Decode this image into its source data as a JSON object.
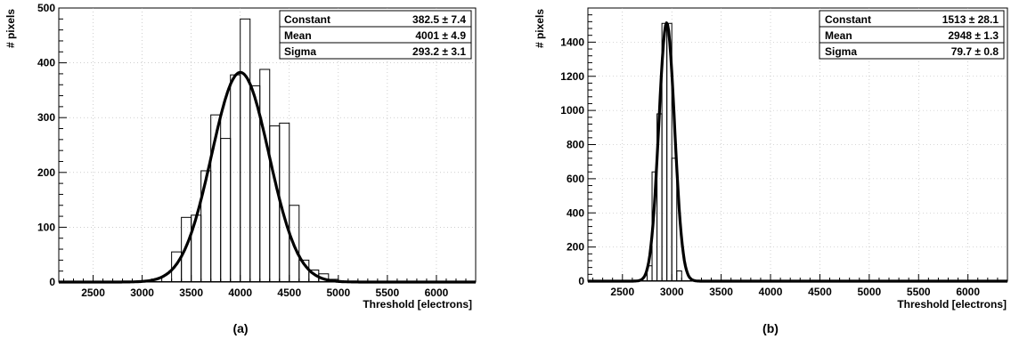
{
  "chart_data": [
    {
      "type": "bar",
      "panel_label": "(a)",
      "xlabel": "Threshold [electrons]",
      "ylabel": "# pixels",
      "xlim": [
        2150,
        6400
      ],
      "ylim": [
        0,
        500
      ],
      "xticks": [
        2500,
        3000,
        3500,
        4000,
        4500,
        5000,
        5500,
        6000
      ],
      "yticks": [
        0,
        100,
        200,
        300,
        400,
        500
      ],
      "bin_width": 100,
      "bins": [
        {
          "x": 3300,
          "y": 55
        },
        {
          "x": 3400,
          "y": 118
        },
        {
          "x": 3500,
          "y": 122
        },
        {
          "x": 3600,
          "y": 203
        },
        {
          "x": 3700,
          "y": 305
        },
        {
          "x": 3800,
          "y": 262
        },
        {
          "x": 3900,
          "y": 378
        },
        {
          "x": 4000,
          "y": 480
        },
        {
          "x": 4100,
          "y": 358
        },
        {
          "x": 4200,
          "y": 388
        },
        {
          "x": 4300,
          "y": 285
        },
        {
          "x": 4400,
          "y": 290
        },
        {
          "x": 4500,
          "y": 140
        },
        {
          "x": 4600,
          "y": 40
        },
        {
          "x": 4700,
          "y": 22
        },
        {
          "x": 4800,
          "y": 15
        },
        {
          "x": 4900,
          "y": 5
        }
      ],
      "fit": {
        "constant": 382.5,
        "mean": 4001,
        "sigma": 293.2
      },
      "stats": [
        {
          "label": "Constant",
          "value": "382.5 ± 7.4"
        },
        {
          "label": "Mean",
          "value": "4001 ± 4.9"
        },
        {
          "label": "Sigma",
          "value": "293.2 ± 3.1"
        }
      ]
    },
    {
      "type": "bar",
      "panel_label": "(b)",
      "xlabel": "Threshold [electrons]",
      "ylabel": "# pixels",
      "xlim": [
        2150,
        6400
      ],
      "ylim": [
        0,
        1600
      ],
      "xticks": [
        2500,
        3000,
        3500,
        4000,
        4500,
        5000,
        5500,
        6000
      ],
      "yticks": [
        0,
        200,
        400,
        600,
        800,
        1000,
        1200,
        1400
      ],
      "bin_width": 50,
      "bins": [
        {
          "x": 2750,
          "y": 90
        },
        {
          "x": 2800,
          "y": 640
        },
        {
          "x": 2850,
          "y": 980
        },
        {
          "x": 2900,
          "y": 1510
        },
        {
          "x": 2950,
          "y": 1510
        },
        {
          "x": 3000,
          "y": 720
        },
        {
          "x": 3050,
          "y": 60
        }
      ],
      "fit": {
        "constant": 1513,
        "mean": 2948,
        "sigma": 79.7
      },
      "stats": [
        {
          "label": "Constant",
          "value": "1513 ± 28.1"
        },
        {
          "label": "Mean",
          "value": "2948 ± 1.3"
        },
        {
          "label": "Sigma",
          "value": "79.7 ± 0.8"
        }
      ]
    }
  ]
}
